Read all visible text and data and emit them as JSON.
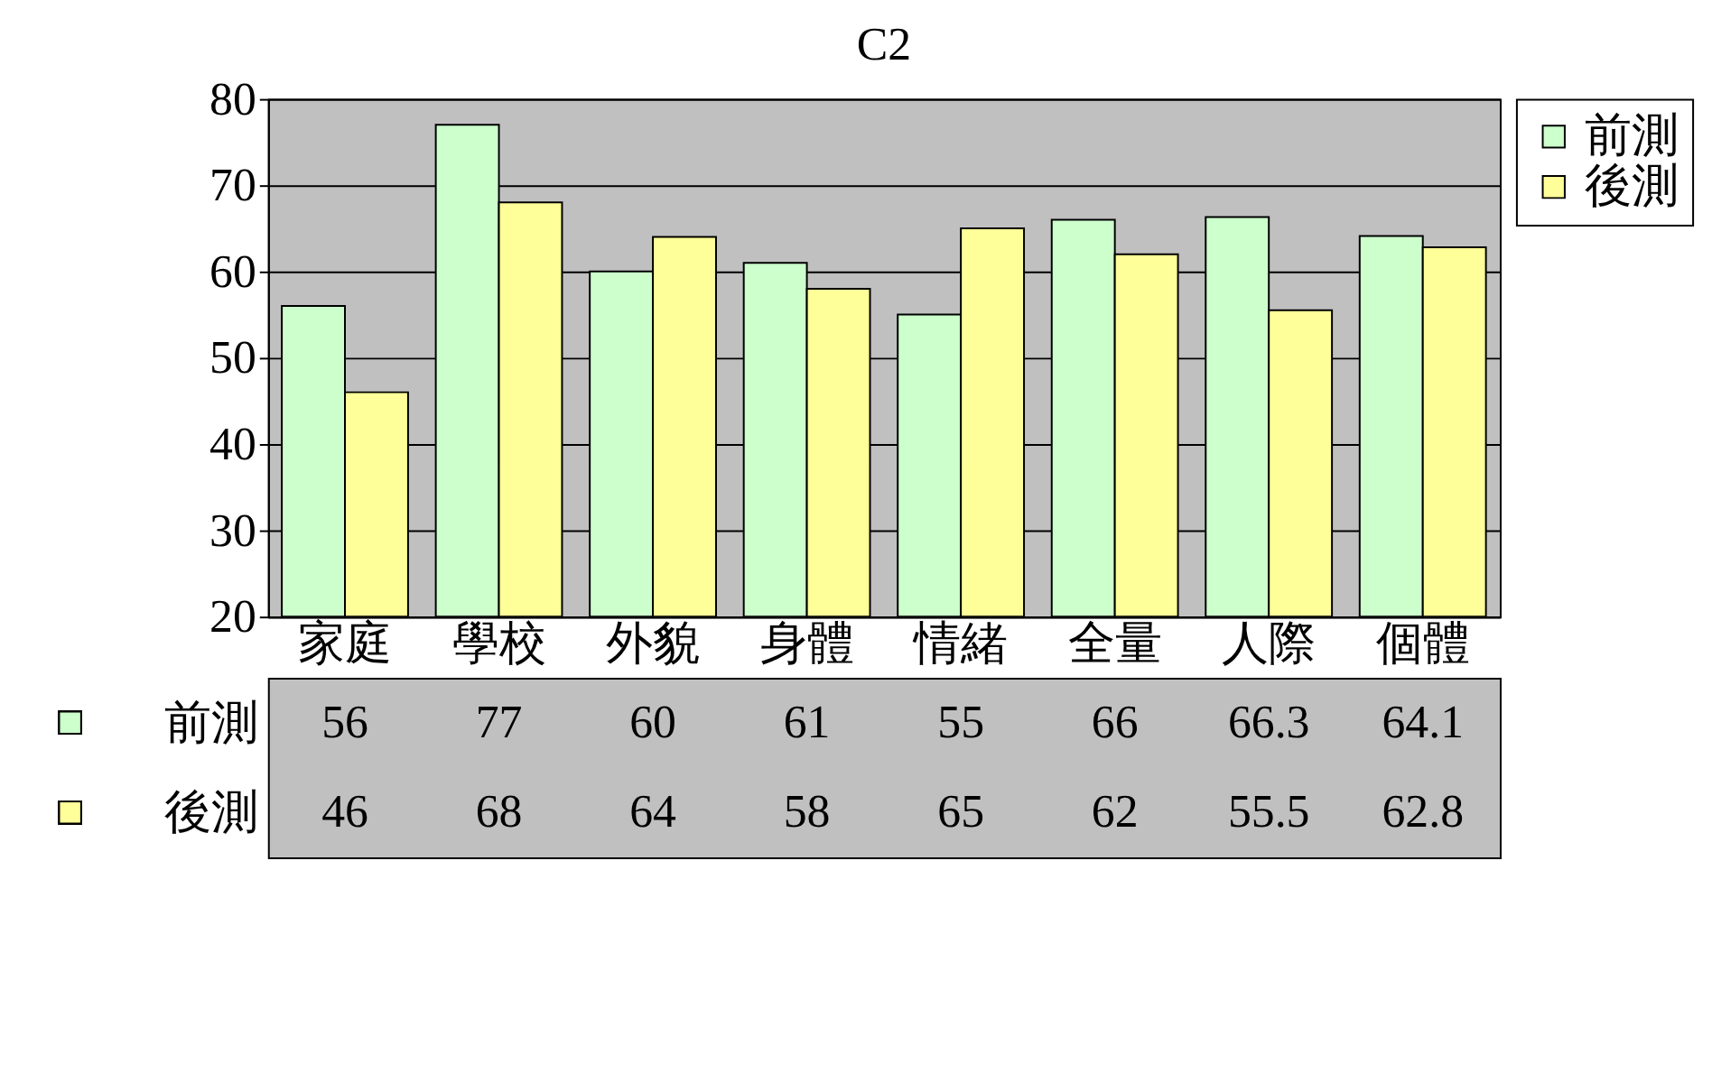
{
  "chart_data": {
    "type": "bar",
    "title": "C2",
    "categories": [
      "家庭",
      "學校",
      "外貌",
      "身體",
      "情緒",
      "全量",
      "人際",
      "個體"
    ],
    "series": [
      {
        "name": "前測",
        "color": "#ccffcc",
        "values": [
          56,
          77,
          60,
          61,
          55,
          66,
          66.3,
          64.1
        ]
      },
      {
        "name": "後測",
        "color": "#ffff99",
        "values": [
          46,
          68,
          64,
          58,
          65,
          62,
          55.5,
          62.8
        ]
      }
    ],
    "ylim": [
      20,
      80
    ],
    "yticks": [
      20,
      30,
      40,
      50,
      60,
      70,
      80
    ],
    "grid": "y",
    "legend": "right",
    "data_labels": true
  }
}
